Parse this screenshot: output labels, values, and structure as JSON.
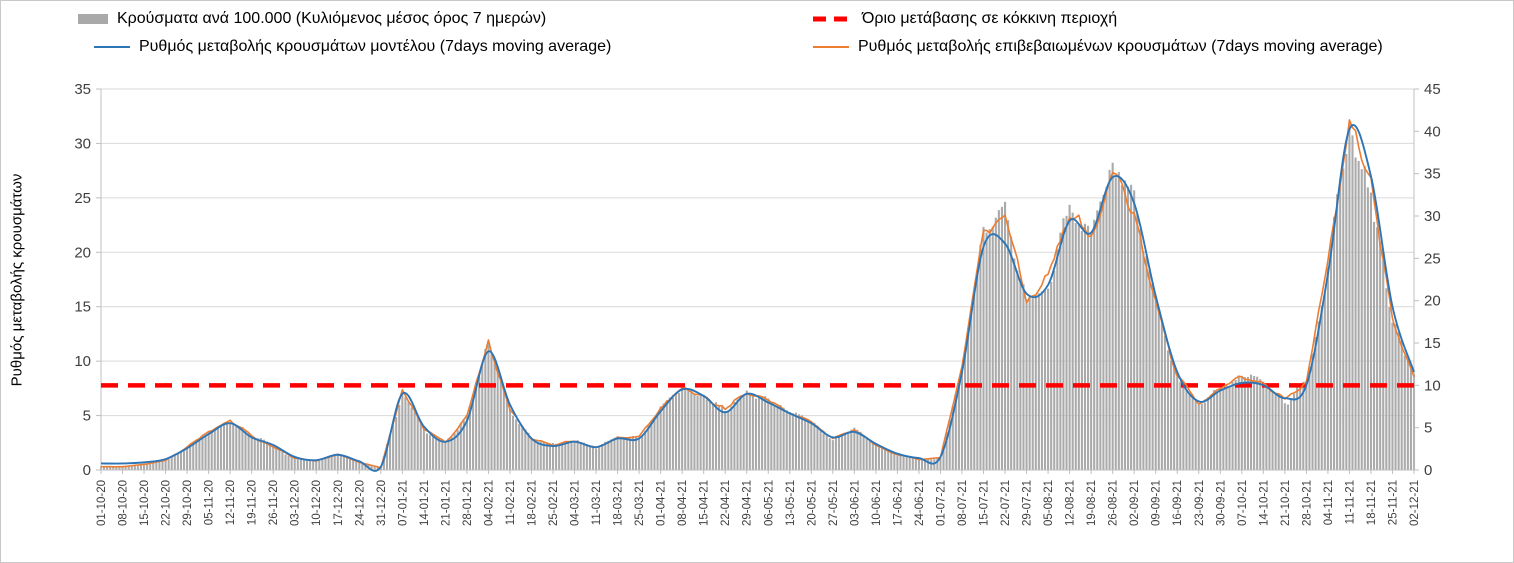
{
  "chart_data": {
    "type": "bar",
    "title": "",
    "ylabel_left": "Ρυθμός μεταβολής κρουσμάτων",
    "legend": [
      {
        "label": "Κρούσματα ανά 100.000 (Κυλιόμενος μέσος όρος 7 ημερών)",
        "type": "bar",
        "color": "#a9a9a9"
      },
      {
        "label": "Όριο μετάβασης σε κόκκινη περιοχή",
        "type": "dashed-line",
        "color": "#fe0000"
      },
      {
        "label": "Ρυθμός μεταβολής κρουσμάτων μοντέλου (7days moving average)",
        "type": "line",
        "color": "#2e75b6"
      },
      {
        "label": "Ρυθμός μεταβολής επιβεβαιωμένων κρουσμάτων (7days moving average)",
        "type": "line",
        "color": "#ed7d31"
      }
    ],
    "left_axis": {
      "min": 0,
      "max": 35,
      "ticks": [
        0,
        5,
        10,
        15,
        20,
        25,
        30,
        35
      ]
    },
    "right_axis": {
      "min": 0,
      "max": 45,
      "ticks": [
        0,
        5,
        10,
        15,
        20,
        25,
        30,
        35,
        40,
        45
      ]
    },
    "threshold_right_axis_value": 10,
    "grid": true,
    "legend_position": "top",
    "colors": {
      "bars": "#aaaaaa",
      "model_line": "#2e75b6",
      "confirmed_line": "#ed7d31",
      "threshold": "#fe0000",
      "gridline": "#d9d9d9",
      "axis": "#bfbfbf",
      "tick_text": "#404040"
    },
    "categories": [
      "01-10-20",
      "08-10-20",
      "15-10-20",
      "22-10-20",
      "29-10-20",
      "05-11-20",
      "12-11-20",
      "19-11-20",
      "26-11-20",
      "03-12-20",
      "10-12-20",
      "17-12-20",
      "24-12-20",
      "31-12-20",
      "07-01-21",
      "14-01-21",
      "21-01-21",
      "28-01-21",
      "04-02-21",
      "11-02-21",
      "18-02-21",
      "25-02-21",
      "04-03-21",
      "11-03-21",
      "18-03-21",
      "25-03-21",
      "01-04-21",
      "08-04-21",
      "15-04-21",
      "22-04-21",
      "29-04-21",
      "06-05-21",
      "13-05-21",
      "20-05-21",
      "27-05-21",
      "03-06-21",
      "10-06-21",
      "17-06-21",
      "24-06-21",
      "01-07-21",
      "08-07-21",
      "15-07-21",
      "22-07-21",
      "29-07-21",
      "05-08-21",
      "12-08-21",
      "19-08-21",
      "26-08-21",
      "02-09-21",
      "09-09-21",
      "16-09-21",
      "23-09-21",
      "30-09-21",
      "07-10-21",
      "14-10-21",
      "21-10-21",
      "28-10-21",
      "04-11-21",
      "11-11-21",
      "18-11-21",
      "25-11-21",
      "02-12-21"
    ],
    "series": [
      {
        "name": "model",
        "axis": "left",
        "values": [
          0.6,
          0.6,
          0.7,
          1.0,
          2.0,
          3.3,
          4.3,
          3.0,
          2.3,
          1.2,
          0.9,
          1.4,
          0.8,
          0.3,
          7.0,
          4.0,
          2.6,
          4.5,
          10.9,
          6.0,
          2.9,
          2.2,
          2.6,
          2.1,
          2.9,
          2.9,
          5.4,
          7.4,
          6.8,
          5.3,
          7.0,
          6.2,
          5.2,
          4.3,
          3.0,
          3.5,
          2.4,
          1.5,
          1.1,
          1.2,
          9.0,
          20.5,
          20.8,
          16.2,
          17.0,
          22.9,
          21.8,
          26.9,
          24.5,
          16.0,
          9.0,
          6.3,
          7.3,
          8.0,
          7.8,
          6.6,
          7.8,
          18.0,
          31.3,
          27.0,
          15.0,
          9.0
        ]
      },
      {
        "name": "confirmed",
        "axis": "left",
        "values": [
          0.3,
          0.3,
          0.5,
          0.9,
          2.1,
          3.6,
          4.5,
          3.1,
          2.2,
          1.1,
          0.8,
          1.5,
          0.7,
          0.2,
          7.3,
          3.8,
          2.5,
          4.9,
          11.6,
          5.6,
          2.8,
          2.3,
          2.7,
          2.0,
          3.0,
          3.0,
          5.7,
          7.6,
          6.6,
          5.5,
          7.3,
          6.3,
          5.4,
          4.4,
          2.9,
          3.7,
          2.3,
          1.4,
          1.0,
          1.1,
          9.8,
          21.5,
          23.9,
          15.4,
          17.8,
          23.6,
          21.2,
          27.8,
          24.0,
          15.5,
          8.6,
          6.1,
          7.6,
          8.6,
          7.9,
          6.4,
          8.1,
          19.0,
          32.0,
          26.0,
          14.2,
          8.6
        ]
      },
      {
        "name": "cases_per_100k",
        "axis": "right",
        "values": [
          0.4,
          0.4,
          0.6,
          1.2,
          2.7,
          4.6,
          5.8,
          4.0,
          2.8,
          1.4,
          1.0,
          1.9,
          0.9,
          0.3,
          9.4,
          4.9,
          3.2,
          6.3,
          14.9,
          7.2,
          3.6,
          3.0,
          3.5,
          2.6,
          3.9,
          3.9,
          7.3,
          9.8,
          8.5,
          7.1,
          9.4,
          8.1,
          6.9,
          5.7,
          3.7,
          4.8,
          3.0,
          1.8,
          1.3,
          1.4,
          12.6,
          27.6,
          30.7,
          19.8,
          22.9,
          30.3,
          27.3,
          35.7,
          30.9,
          19.9,
          11.1,
          7.8,
          9.8,
          11.1,
          10.2,
          8.2,
          10.4,
          24.4,
          41.1,
          33.4,
          18.3,
          11.1
        ]
      }
    ]
  }
}
